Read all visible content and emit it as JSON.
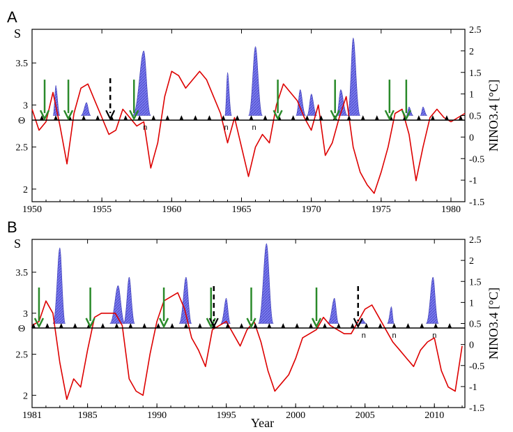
{
  "chart_data": [
    {
      "panel": "A",
      "type": "line",
      "x_range": [
        1950,
        1981
      ],
      "x_ticks": [
        "1950",
        "1955",
        "1960",
        "1965",
        "1970",
        "1975",
        "1980"
      ],
      "y_left": {
        "label": "S",
        "range": [
          1.85,
          3.9
        ],
        "ticks": [
          "2",
          "2.5",
          "3",
          "3.5"
        ],
        "theta_level": 2.82,
        "theta_label": "Θ"
      },
      "y_right": {
        "label": "NINO3.4 [°C]",
        "range": [
          -1.5,
          2.5
        ],
        "ticks": [
          "-1.5",
          "-1",
          "-0.5",
          "0",
          "0.5",
          "1",
          "1.5",
          "2",
          "2.5"
        ],
        "threshold": 0.5
      },
      "series": [
        {
          "color": "#dd0000",
          "x": [
            1950.0,
            1950.5,
            1951.0,
            1951.5,
            1952.0,
            1952.5,
            1953.0,
            1953.5,
            1954.0,
            1954.5,
            1955.0,
            1955.5,
            1956.0,
            1956.5,
            1957.0,
            1957.5,
            1958.0,
            1958.5,
            1959.0,
            1959.5,
            1960.0,
            1960.5,
            1961.0,
            1961.5,
            1962.0,
            1962.5,
            1963.0,
            1963.5,
            1964.0,
            1964.5,
            1965.0,
            1965.5,
            1966.0,
            1966.5,
            1967.0,
            1967.5,
            1968.0,
            1968.5,
            1969.0,
            1969.5,
            1970.0,
            1970.5,
            1971.0,
            1971.5,
            1972.0,
            1972.5,
            1973.0,
            1973.5,
            1974.0,
            1974.5,
            1975.0,
            1975.5,
            1976.0,
            1976.5,
            1977.0,
            1977.5,
            1978.0,
            1978.5,
            1979.0,
            1979.5,
            1980.0,
            1980.5,
            1981.0
          ],
          "y": [
            2.95,
            2.7,
            2.8,
            3.15,
            2.75,
            2.3,
            2.9,
            3.2,
            3.25,
            3.05,
            2.85,
            2.65,
            2.7,
            2.95,
            2.85,
            2.75,
            2.8,
            2.25,
            2.55,
            3.1,
            3.4,
            3.35,
            3.2,
            3.3,
            3.4,
            3.3,
            3.1,
            2.9,
            2.55,
            2.85,
            2.5,
            2.15,
            2.5,
            2.65,
            2.55,
            3.0,
            3.25,
            3.15,
            3.05,
            2.85,
            2.7,
            3.0,
            2.4,
            2.55,
            2.85,
            3.1,
            2.5,
            2.2,
            2.05,
            1.95,
            2.2,
            2.5,
            2.9,
            2.95,
            2.65,
            2.1,
            2.5,
            2.85,
            2.95,
            2.85,
            2.8,
            2.85,
            2.9
          ]
        }
      ],
      "nino_events": [
        {
          "start": 1951.5,
          "peak_x": 1951.7,
          "end": 1952.0,
          "peak": 1.2
        },
        {
          "start": 1953.5,
          "peak_x": 1953.9,
          "end": 1954.2,
          "peak": 0.8
        },
        {
          "start": 1957.2,
          "peak_x": 1958.0,
          "end": 1958.5,
          "peak": 2.0
        },
        {
          "start": 1963.8,
          "peak_x": 1964.0,
          "end": 1964.3,
          "peak": 1.5
        },
        {
          "start": 1965.5,
          "peak_x": 1966.0,
          "end": 1966.5,
          "peak": 2.1
        },
        {
          "start": 1968.9,
          "peak_x": 1969.2,
          "end": 1969.6,
          "peak": 1.1
        },
        {
          "start": 1969.7,
          "peak_x": 1970.0,
          "end": 1970.4,
          "peak": 1.0
        },
        {
          "start": 1971.8,
          "peak_x": 1972.1,
          "end": 1972.6,
          "peak": 1.1
        },
        {
          "start": 1972.6,
          "peak_x": 1973.0,
          "end": 1973.5,
          "peak": 2.3
        },
        {
          "start": 1976.8,
          "peak_x": 1977.0,
          "end": 1977.3,
          "peak": 0.7
        },
        {
          "start": 1977.8,
          "peak_x": 1978.0,
          "end": 1978.3,
          "peak": 0.7
        }
      ],
      "green_arrows": [
        1950.9,
        1952.6,
        1957.3,
        1967.6,
        1971.7,
        1975.6,
        1976.8
      ],
      "black_dashed_arrows": [
        1955.6
      ],
      "n_markers": [
        1958.1,
        1963.9,
        1965.9
      ],
      "n_marker_label": "n",
      "triangle_markers": [
        1950.7,
        1951.7,
        1952.7,
        1953.7,
        1954.7,
        1955.7,
        1956.7,
        1957.7,
        1958.7,
        1959.7,
        1960.7,
        1961.7,
        1962.7,
        1963.7,
        1964.7,
        1965.7,
        1966.7,
        1967.7,
        1968.7,
        1969.7,
        1970.7,
        1971.7,
        1972.7,
        1973.7,
        1974.7,
        1975.7,
        1976.7,
        1977.7,
        1978.7,
        1979.7,
        1980.7
      ]
    },
    {
      "panel": "B",
      "type": "line",
      "x_range": [
        1981,
        2012.2
      ],
      "x_ticks": [
        "1981",
        "1985",
        "1990",
        "1995",
        "2000",
        "2005",
        "2010"
      ],
      "x_tick_values": [
        1981,
        1985,
        1990,
        1995,
        2000,
        2005,
        2010
      ],
      "x_label": "Year",
      "y_left": {
        "label": "S",
        "range": [
          1.85,
          3.9
        ],
        "ticks": [
          "2",
          "2.5",
          "3",
          "3.5"
        ],
        "theta_level": 2.82,
        "theta_label": "Θ"
      },
      "y_right": {
        "label": "NINO3.4 [°C]",
        "range": [
          -1.5,
          2.5
        ],
        "ticks": [
          "-1.5",
          "-1",
          "-0.5",
          "0",
          "0.5",
          "1",
          "1.5",
          "2",
          "2.5"
        ],
        "threshold": 0.5
      },
      "series": [
        {
          "color": "#dd0000",
          "x": [
            1981.0,
            1981.5,
            1982.0,
            1982.5,
            1983.0,
            1983.5,
            1984.0,
            1984.5,
            1985.0,
            1985.5,
            1986.0,
            1986.5,
            1987.0,
            1987.5,
            1988.0,
            1988.5,
            1989.0,
            1989.5,
            1990.0,
            1990.5,
            1991.0,
            1991.5,
            1992.0,
            1992.5,
            1993.0,
            1993.5,
            1994.0,
            1994.5,
            1995.0,
            1995.5,
            1996.0,
            1996.5,
            1997.0,
            1997.5,
            1998.0,
            1998.5,
            1999.0,
            1999.5,
            2000.0,
            2000.5,
            2001.0,
            2001.5,
            2002.0,
            2002.5,
            2003.0,
            2003.5,
            2004.0,
            2004.5,
            2005.0,
            2005.5,
            2006.0,
            2006.5,
            2007.0,
            2007.5,
            2008.0,
            2008.5,
            2009.0,
            2009.5,
            2010.0,
            2010.5,
            2011.0,
            2011.5,
            2012.0
          ],
          "y": [
            2.85,
            2.9,
            3.15,
            3.0,
            2.4,
            1.95,
            2.2,
            2.1,
            2.55,
            2.95,
            3.0,
            3.0,
            3.0,
            2.85,
            2.2,
            2.05,
            2.0,
            2.5,
            2.9,
            3.15,
            3.2,
            3.25,
            3.05,
            2.7,
            2.55,
            2.35,
            2.8,
            2.85,
            2.9,
            2.75,
            2.6,
            2.8,
            2.9,
            2.65,
            2.3,
            2.05,
            2.15,
            2.25,
            2.45,
            2.7,
            2.75,
            2.8,
            2.95,
            2.85,
            2.8,
            2.75,
            2.75,
            2.9,
            3.05,
            3.1,
            2.95,
            2.8,
            2.65,
            2.55,
            2.45,
            2.35,
            2.55,
            2.65,
            2.7,
            2.3,
            2.1,
            2.05,
            2.6
          ]
        }
      ],
      "nino_events": [
        {
          "start": 1982.5,
          "peak_x": 1983.0,
          "end": 1983.4,
          "peak": 2.3
        },
        {
          "start": 1986.6,
          "peak_x": 1987.2,
          "end": 1987.7,
          "peak": 1.4
        },
        {
          "start": 1987.6,
          "peak_x": 1988.0,
          "end": 1988.4,
          "peak": 1.6
        },
        {
          "start": 1991.6,
          "peak_x": 1992.1,
          "end": 1992.5,
          "peak": 1.6
        },
        {
          "start": 1994.6,
          "peak_x": 1995.0,
          "end": 1995.3,
          "peak": 1.1
        },
        {
          "start": 1997.3,
          "peak_x": 1997.9,
          "end": 1998.4,
          "peak": 2.4
        },
        {
          "start": 2002.3,
          "peak_x": 2002.8,
          "end": 2003.1,
          "peak": 1.1
        },
        {
          "start": 2004.5,
          "peak_x": 2004.8,
          "end": 2005.1,
          "peak": 0.6
        },
        {
          "start": 2006.6,
          "peak_x": 2006.9,
          "end": 2007.1,
          "peak": 0.9
        },
        {
          "start": 2009.4,
          "peak_x": 2009.9,
          "end": 2010.3,
          "peak": 1.6
        }
      ],
      "green_arrows": [
        1981.5,
        1985.2,
        1990.5,
        1993.9,
        1996.8,
        2001.5
      ],
      "black_dashed_arrows": [
        1994.1,
        2004.5
      ],
      "n_markers": [
        2004.9,
        2007.1,
        2010.0
      ],
      "n_marker_label": "n",
      "triangle_markers": [
        1981.1,
        1982.1,
        1983.1,
        1984.1,
        1985.1,
        1986.1,
        1987.1,
        1988.1,
        1989.1,
        1990.1,
        1991.1,
        1992.1,
        1993.1,
        1994.1,
        1995.1,
        1996.1,
        1997.1,
        1998.1,
        1999.1,
        2000.1,
        2001.1,
        2002.1,
        2003.1,
        2004.1,
        2005.1,
        2006.1,
        2007.1,
        2008.1,
        2009.1,
        2010.1,
        2011.1
      ]
    }
  ],
  "colors": {
    "s_line": "#dd0000",
    "nino_fill": "#6f6fe6",
    "nino_stroke": "#3a3ab0",
    "green_arrow": "#2a8a2a",
    "black_arrow": "#000000",
    "axis": "#000000"
  }
}
